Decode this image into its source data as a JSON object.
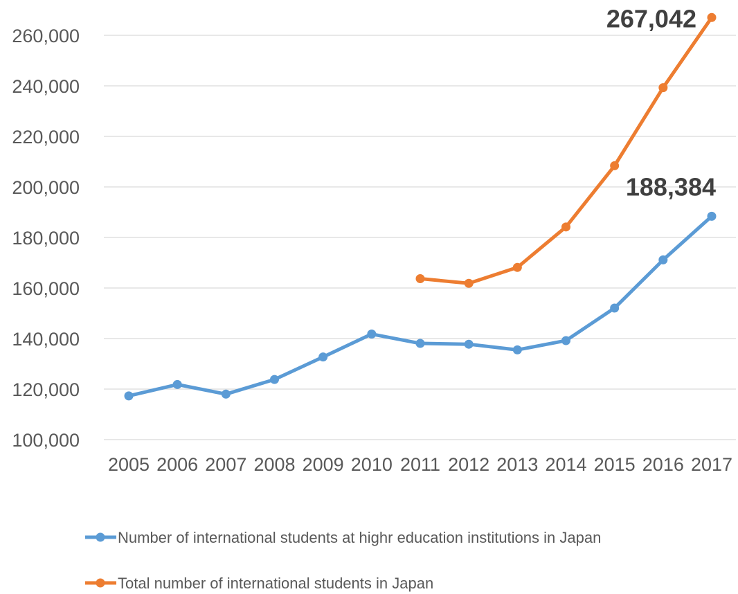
{
  "chart_data": {
    "type": "line",
    "title": "",
    "xlabel": "",
    "ylabel": "",
    "x": [
      "2005",
      "2006",
      "2007",
      "2008",
      "2009",
      "2010",
      "2011",
      "2012",
      "2013",
      "2014",
      "2015",
      "2016",
      "2017"
    ],
    "y_ticks": [
      "100,000",
      "120,000",
      "140,000",
      "160,000",
      "180,000",
      "200,000",
      "220,000",
      "240,000",
      "260,000"
    ],
    "ylim": [
      100000,
      260000
    ],
    "grid": true,
    "legend_position": "bottom",
    "series": [
      {
        "name": "Number of international students at highr education institutions in Japan",
        "color": "#5b9bd5",
        "values": [
          117302,
          121812,
          118000,
          123800,
          132700,
          141774,
          138075,
          137756,
          135519,
          139185,
          152062,
          171122,
          188384
        ]
      },
      {
        "name": "Total number of international students in Japan",
        "color": "#ed7d31",
        "values": [
          null,
          null,
          null,
          null,
          null,
          null,
          163697,
          161848,
          168145,
          184155,
          208379,
          239287,
          267042
        ]
      }
    ],
    "annotations": [
      {
        "series": 1,
        "x": "2017",
        "text": "267,042"
      },
      {
        "series": 0,
        "x": "2017",
        "text": "188,384"
      }
    ]
  }
}
